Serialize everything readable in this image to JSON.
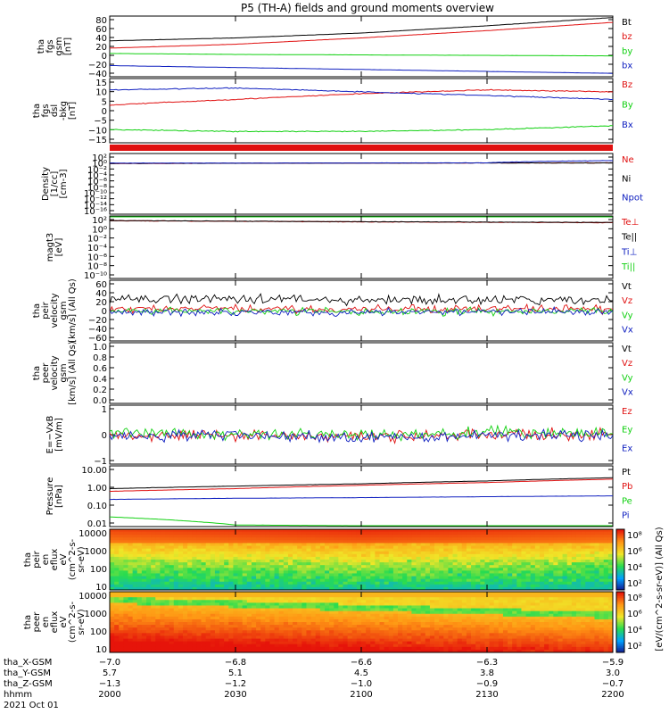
{
  "title": "P5 (TH-A) fields and ground moments overview",
  "colors": {
    "black": "#000000",
    "red": "#e01010",
    "green": "#10d010",
    "blue": "#1020c0"
  },
  "panels": [
    {
      "id": "fgs_gsm",
      "ylabel": [
        "tha",
        "fgs",
        "gsm",
        "[nT]"
      ],
      "scale": "linear",
      "yticks": [
        "80",
        "60",
        "40",
        "20",
        "0",
        "−20",
        "−40"
      ],
      "yrange": [
        -40,
        85
      ],
      "legend": [
        {
          "text": "Bt",
          "color": "black"
        },
        {
          "text": "bz",
          "color": "red"
        },
        {
          "text": "by",
          "color": "green"
        },
        {
          "text": "bx",
          "color": "blue"
        }
      ]
    },
    {
      "id": "fgs_dsl",
      "ylabel": [
        "tha",
        "fgs",
        "dsl",
        "-bkg",
        "[nT]"
      ],
      "scale": "linear",
      "yticks": [
        "15",
        "10",
        "5",
        "0",
        "−5",
        "−10",
        "−15"
      ],
      "yrange": [
        -18,
        16
      ],
      "legend": [
        {
          "text": "Bz",
          "color": "red"
        },
        {
          "text": "By",
          "color": "green"
        },
        {
          "text": "Bx",
          "color": "blue"
        }
      ]
    },
    {
      "id": "density",
      "ylabel": [
        "Density",
        "[1/cc]",
        "[cm-3]"
      ],
      "scale": "log",
      "yticks": [
        "10²",
        "10⁰",
        "10⁻²",
        "10⁻⁴",
        "10⁻⁶",
        "10⁻⁸",
        "10⁻¹⁰",
        "10⁻¹²",
        "10⁻¹⁴",
        "10⁻¹⁶"
      ],
      "yrange": [
        -16,
        3
      ],
      "legend": [
        {
          "text": "Ne",
          "color": "red"
        },
        {
          "text": "Ni",
          "color": "black"
        },
        {
          "text": "Npot",
          "color": "blue"
        }
      ]
    },
    {
      "id": "temperature",
      "ylabel": [
        "magt3",
        "[eV]"
      ],
      "scale": "log",
      "yticks": [
        "10²",
        "10⁰",
        "10⁻²",
        "10⁻⁴",
        "10⁻⁶",
        "10⁻⁸",
        "10⁻¹⁰"
      ],
      "yrange": [
        -10,
        3
      ],
      "legend": [
        {
          "text": "Te⊥",
          "color": "red"
        },
        {
          "text": "Te||",
          "color": "black"
        },
        {
          "text": "Ti⊥",
          "color": "blue"
        },
        {
          "text": "Ti||",
          "color": "green"
        }
      ]
    },
    {
      "id": "peir_vel",
      "ylabel": [
        "tha",
        "peir",
        "velocity",
        "gsm",
        "[km/s] (All Qs)"
      ],
      "scale": "linear",
      "yticks": [
        "60",
        "40",
        "20",
        "0",
        "−20",
        "−40",
        "−60"
      ],
      "yrange": [
        -60,
        60
      ],
      "legend": [
        {
          "text": "Vt",
          "color": "black"
        },
        {
          "text": "Vz",
          "color": "red"
        },
        {
          "text": "Vy",
          "color": "green"
        },
        {
          "text": "Vx",
          "color": "blue"
        }
      ]
    },
    {
      "id": "peer_vel",
      "ylabel": [
        "tha",
        "peer",
        "velocity",
        "gsm",
        "[km/s] (All Qs)"
      ],
      "scale": "linear",
      "yticks": [
        "1.0",
        "0.8",
        "0.6",
        "0.4",
        "0.2",
        "0.0"
      ],
      "yrange": [
        0,
        1
      ],
      "legend": [
        {
          "text": "Vt",
          "color": "black"
        },
        {
          "text": "Vz",
          "color": "red"
        },
        {
          "text": "Vy",
          "color": "green"
        },
        {
          "text": "Vx",
          "color": "blue"
        }
      ]
    },
    {
      "id": "efield",
      "ylabel": [
        "E=−VxB",
        "[mV/m]"
      ],
      "scale": "linear",
      "yticks": [
        "1",
        "0",
        "−1"
      ],
      "yrange": [
        -1.5,
        1.5
      ],
      "legend": [
        {
          "text": "Ez",
          "color": "red"
        },
        {
          "text": "Ey",
          "color": "green"
        },
        {
          "text": "Ex",
          "color": "blue"
        }
      ]
    },
    {
      "id": "pressure",
      "ylabel": [
        "Pressure",
        "[nPa]"
      ],
      "scale": "log",
      "yticks": [
        "10.00",
        "1.00",
        "0.10",
        "0.01"
      ],
      "yrange": [
        -2,
        1
      ],
      "legend": [
        {
          "text": "Pt",
          "color": "black"
        },
        {
          "text": "Pb",
          "color": "red"
        },
        {
          "text": "Pe",
          "color": "green"
        },
        {
          "text": "Pi",
          "color": "blue"
        }
      ]
    },
    {
      "id": "peir_spec",
      "ylabel": [
        "tha",
        "peir",
        "en",
        "eflux",
        "eV",
        "(cm^2-s-",
        "sr-eV)"
      ],
      "scale": "log",
      "yticks": [
        "10000",
        "1000",
        "100",
        "10"
      ],
      "yrange": [
        0.7,
        4.3
      ],
      "spectrogram": true
    },
    {
      "id": "peer_spec",
      "ylabel": [
        "tha",
        "peer",
        "en",
        "eflux",
        "eV",
        "(cm^2-s-",
        "sr-eV)"
      ],
      "scale": "log",
      "yticks": [
        "10000",
        "1000",
        "100",
        "10"
      ],
      "yrange": [
        0.7,
        4.3
      ],
      "spectrogram": true
    }
  ],
  "colorbar": {
    "ticks1": [
      "10⁸",
      "10⁶",
      "10⁴",
      "10²"
    ],
    "ticks2": [
      "10⁸",
      "10⁶",
      "10⁴",
      "10²"
    ],
    "label": "[eV/(cm^2-s-sr-eV)] (All Qs)"
  },
  "xaxis": {
    "row_labels": [
      "tha_X-GSM",
      "tha_Y-GSM",
      "tha_Z-GSM",
      "hhmm",
      "2021 Oct 01"
    ],
    "ticks": [
      {
        "x": "−7.0",
        "y": "5.7",
        "z": "−1.3",
        "t": "2000"
      },
      {
        "x": "−6.8",
        "y": "5.1",
        "z": "−1.2",
        "t": "2030"
      },
      {
        "x": "−6.6",
        "y": "4.5",
        "z": "−1.0",
        "t": "2100"
      },
      {
        "x": "−6.3",
        "y": "3.8",
        "z": "−0.9",
        "t": "2130"
      },
      {
        "x": "−5.9",
        "y": "3.0",
        "z": "−0.7",
        "t": "2200"
      }
    ]
  },
  "chart_data": [
    {
      "type": "line",
      "title": "P5 (TH-A) fields and ground moments overview",
      "ylabel": "tha fgs gsm [nT]",
      "x": [
        "2000",
        "2030",
        "2100",
        "2130",
        "2200"
      ],
      "ylim": [
        -40,
        85
      ],
      "series": [
        {
          "name": "Bt",
          "values": [
            34,
            40,
            50,
            65,
            82
          ]
        },
        {
          "name": "bz",
          "values": [
            19,
            27,
            40,
            55,
            72
          ]
        },
        {
          "name": "by",
          "values": [
            8,
            6,
            5,
            4,
            3
          ]
        },
        {
          "name": "bx",
          "values": [
            -17,
            -21,
            -25,
            -29,
            -33
          ]
        }
      ]
    },
    {
      "type": "line",
      "ylabel": "tha fgs dsl-bkg [nT]",
      "x": [
        "2000",
        "2030",
        "2100",
        "2130",
        "2200"
      ],
      "ylim": [
        -18,
        16
      ],
      "series": [
        {
          "name": "Bz",
          "values": [
            2,
            5,
            8,
            10,
            9
          ]
        },
        {
          "name": "By",
          "values": [
            -11,
            -12,
            -12,
            -11,
            -9
          ]
        },
        {
          "name": "Bx",
          "values": [
            10,
            11,
            9,
            7,
            5
          ]
        }
      ]
    },
    {
      "type": "line",
      "ylabel": "Density [1/cc] [cm-3]",
      "x": [
        "2000",
        "2030",
        "2100",
        "2130",
        "2200"
      ],
      "ylim": [
        1e-16,
        1000
      ],
      "series": [
        {
          "name": "Ne",
          "values": [
            0.7,
            0.9,
            1.0,
            1.1,
            1.2
          ]
        },
        {
          "name": "Ni",
          "values": [
            0.8,
            0.9,
            1.0,
            1.1,
            1.1
          ]
        },
        {
          "name": "Npot",
          "values": [
            1.0,
            1.0,
            1.1,
            1.2,
            6.0
          ]
        }
      ]
    },
    {
      "type": "line",
      "ylabel": "magt3 [eV]",
      "x": [
        "2000",
        "2030",
        "2100",
        "2130",
        "2200"
      ],
      "ylim": [
        1e-10,
        1000
      ],
      "series": [
        {
          "name": "Te⊥",
          "values": [
            100,
            80,
            60,
            50,
            40
          ]
        },
        {
          "name": "Te||",
          "values": [
            110,
            85,
            65,
            55,
            45
          ]
        },
        {
          "name": "Ti⊥",
          "values": [
            900,
            900,
            900,
            900,
            900
          ]
        },
        {
          "name": "Ti||",
          "values": [
            1000,
            1000,
            1000,
            1000,
            1000
          ]
        }
      ]
    },
    {
      "type": "line",
      "ylabel": "tha peir velocity gsm [km/s] (All Qs)",
      "x": [
        "2000",
        "2030",
        "2100",
        "2130",
        "2200"
      ],
      "ylim": [
        -60,
        60
      ],
      "series": [
        {
          "name": "Vt",
          "values": [
            22,
            25,
            20,
            21,
            20
          ]
        },
        {
          "name": "Vz",
          "values": [
            3,
            4,
            2,
            4,
            3
          ]
        },
        {
          "name": "Vy",
          "values": [
            -2,
            0,
            -3,
            -1,
            -2
          ]
        },
        {
          "name": "Vx",
          "values": [
            -3,
            -2,
            -4,
            -2,
            -3
          ]
        }
      ]
    },
    {
      "type": "line",
      "ylabel": "tha peer velocity gsm [km/s] (All Qs)",
      "x": [
        "2000",
        "2030",
        "2100",
        "2130",
        "2200"
      ],
      "ylim": [
        0,
        1
      ],
      "series": []
    },
    {
      "type": "line",
      "ylabel": "E=−VxB [mV/m]",
      "x": [
        "2000",
        "2030",
        "2100",
        "2130",
        "2200"
      ],
      "ylim": [
        -1.5,
        1.5
      ],
      "series": [
        {
          "name": "Ez",
          "values": [
            0.0,
            0.0,
            -0.1,
            0.0,
            0.0
          ]
        },
        {
          "name": "Ey",
          "values": [
            0.1,
            0.0,
            0.0,
            0.1,
            0.1
          ]
        },
        {
          "name": "Ex",
          "values": [
            -0.1,
            0.0,
            -0.2,
            0.0,
            0.0
          ]
        }
      ]
    },
    {
      "type": "line",
      "ylabel": "Pressure [nPa]",
      "x": [
        "2000",
        "2030",
        "2100",
        "2130",
        "2200"
      ],
      "ylim": [
        0.008,
        12
      ],
      "series": [
        {
          "name": "Pt",
          "values": [
            0.75,
            1.0,
            1.3,
            1.8,
            2.6
          ]
        },
        {
          "name": "Pb",
          "values": [
            0.55,
            0.75,
            1.1,
            1.5,
            2.2
          ]
        },
        {
          "name": "Pe",
          "values": [
            0.03,
            0.012,
            0.011,
            0.011,
            0.011
          ]
        },
        {
          "name": "Pi",
          "values": [
            0.22,
            0.25,
            0.27,
            0.3,
            0.33
          ]
        }
      ]
    },
    {
      "type": "heatmap",
      "ylabel": "tha peir en eflux eV/(cm^2-s-sr-eV)",
      "x": [
        "2000",
        "2030",
        "2100",
        "2130",
        "2200"
      ],
      "ylim": [
        10,
        10000
      ],
      "colorbar_ticks": [
        "10²",
        "10⁴",
        "10⁶",
        "10⁸"
      ]
    },
    {
      "type": "heatmap",
      "ylabel": "tha peer en eflux eV/(cm^2-s-sr-eV)",
      "x": [
        "2000",
        "2030",
        "2100",
        "2130",
        "2200"
      ],
      "ylim": [
        10,
        10000
      ],
      "colorbar_ticks": [
        "10²",
        "10⁴",
        "10⁶",
        "10⁸"
      ]
    }
  ]
}
